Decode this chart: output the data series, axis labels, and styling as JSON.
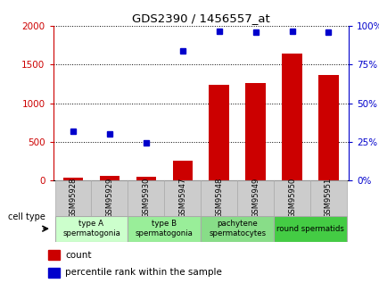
{
  "title": "GDS2390 / 1456557_at",
  "samples": [
    "GSM95928",
    "GSM95929",
    "GSM95930",
    "GSM95947",
    "GSM95948",
    "GSM95949",
    "GSM95950",
    "GSM95951"
  ],
  "counts": [
    30,
    60,
    40,
    250,
    1240,
    1260,
    1650,
    1370
  ],
  "percentile_ranks": [
    32,
    30,
    24,
    84,
    97,
    96,
    97,
    96
  ],
  "ylim_left": [
    0,
    2000
  ],
  "ylim_right": [
    0,
    100
  ],
  "yticks_left": [
    0,
    500,
    1000,
    1500,
    2000
  ],
  "yticks_right": [
    0,
    25,
    50,
    75,
    100
  ],
  "ytick_labels_left": [
    "0",
    "500",
    "1000",
    "1500",
    "2000"
  ],
  "ytick_labels_right": [
    "0%",
    "25%",
    "50%",
    "75%",
    "100%"
  ],
  "bar_color": "#cc0000",
  "dot_color": "#0000cc",
  "cell_groups": [
    {
      "label": "type A\nspermatogonia",
      "indices": [
        0,
        1
      ],
      "color": "#ccffcc"
    },
    {
      "label": "type B\nspermatogonia",
      "indices": [
        2,
        3
      ],
      "color": "#99ee99"
    },
    {
      "label": "pachytene\nspermatocytes",
      "indices": [
        4,
        5
      ],
      "color": "#88dd88"
    },
    {
      "label": "round spermatids",
      "indices": [
        6,
        7
      ],
      "color": "#44cc44"
    }
  ],
  "header_bg": "#cccccc",
  "legend_count_label": "count",
  "legend_pct_label": "percentile rank within the sample",
  "cell_type_label": "cell type",
  "bar_width": 0.55,
  "xlim": [
    -0.55,
    7.55
  ]
}
